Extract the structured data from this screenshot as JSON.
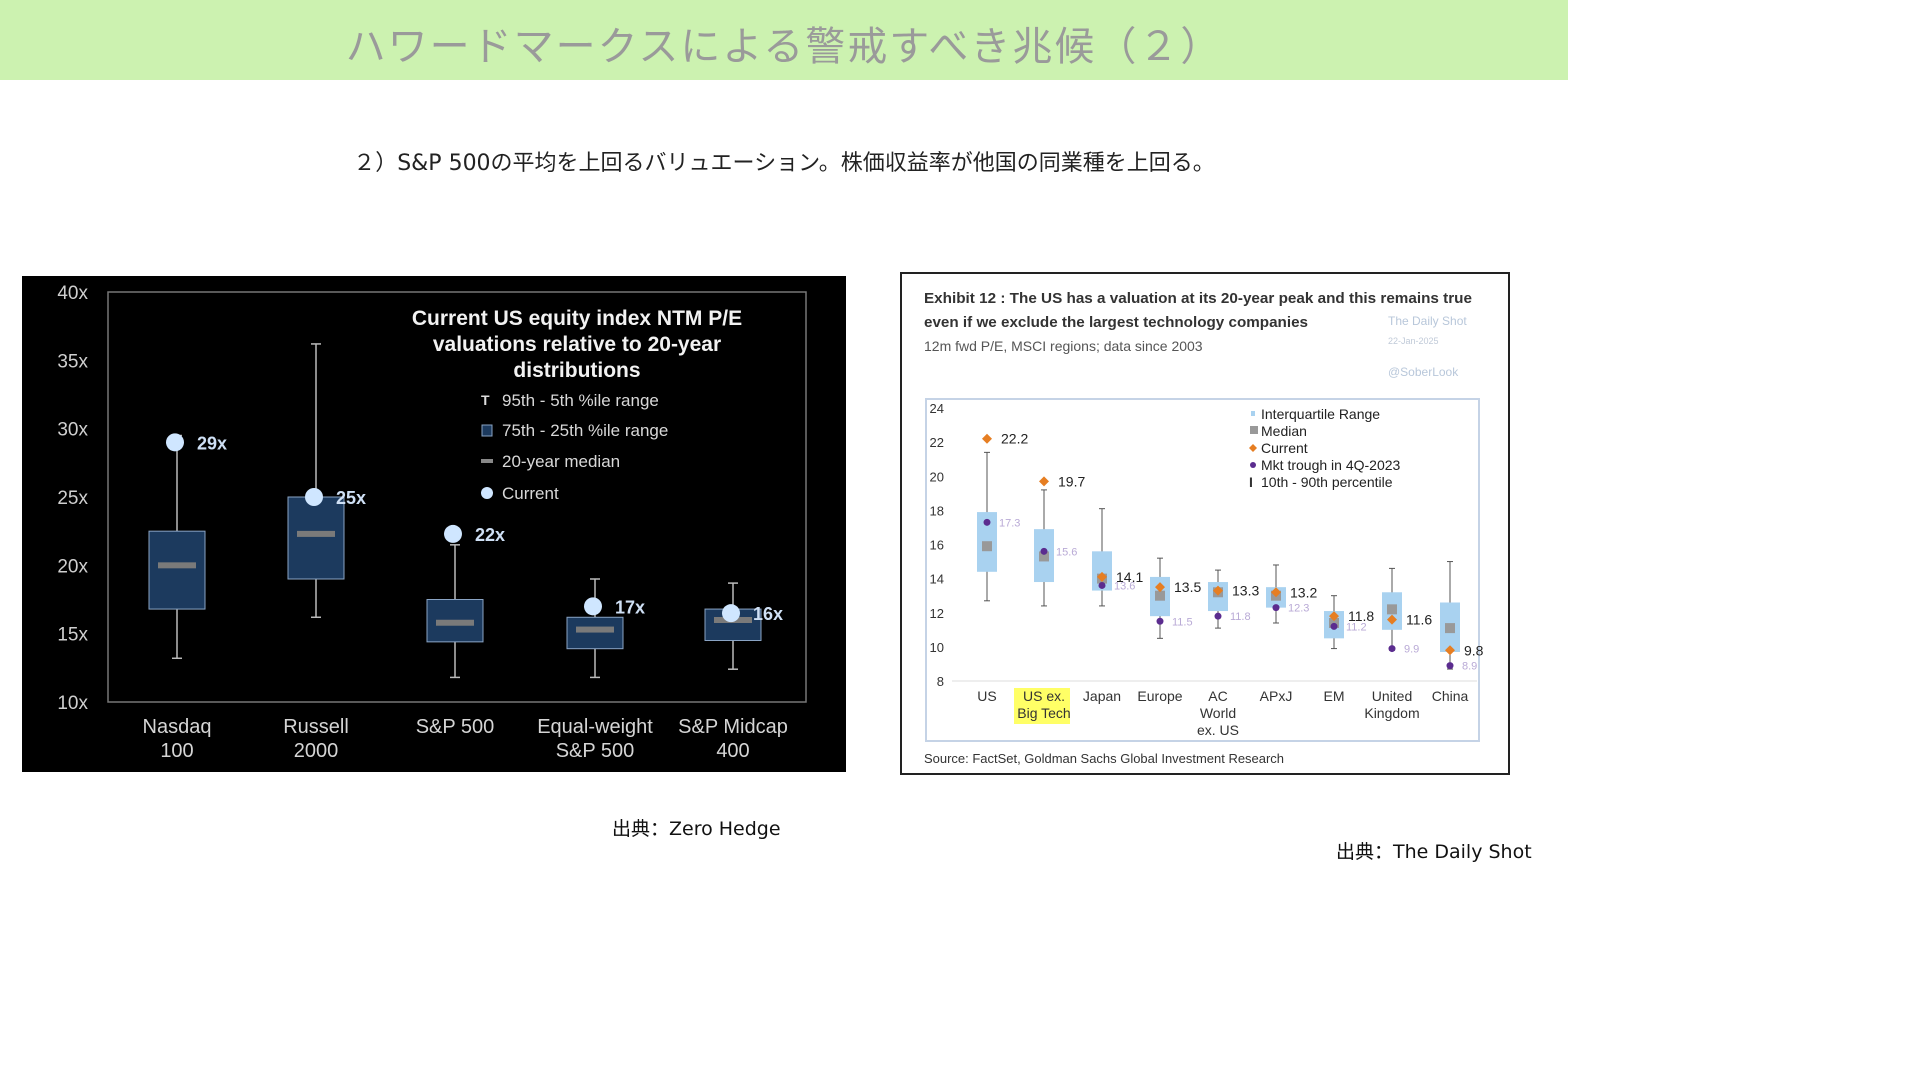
{
  "header": {
    "title": "ハワードマークスによる警戒すべき兆候（２）"
  },
  "subtitle": "２）S&P 500の平均を上回るバリュエーション。株価収益率が他国の同業種を上回る。",
  "sources": {
    "left": "出典：Zero Hedge",
    "right": "出典：The Daily Shot"
  },
  "colors": {
    "header_bg": "#ccf2b0",
    "left_bg": "#000000",
    "left_box": "#1c3a5e",
    "left_current": "#cfe6ff",
    "right_box": "#a9d2f0",
    "right_current": "#e67e22",
    "right_trough": "#5b2c8f",
    "right_median": "#999999",
    "highlight": "#ffff66"
  },
  "chart_data": [
    {
      "type": "boxplot",
      "title": "Current US equity index NTM P/E valuations relative to 20-year distributions",
      "title_lines": [
        "Current US equity index NTM P/E",
        "valuations relative to 20-year",
        "distributions"
      ],
      "legend": [
        {
          "symbol": "T",
          "label": "95th - 5th %ile range"
        },
        {
          "symbol": "box",
          "label": "75th - 25th %ile range"
        },
        {
          "symbol": "dash",
          "label": "20-year median"
        },
        {
          "symbol": "dot",
          "label": "Current"
        }
      ],
      "legend_position": "top-right",
      "y_ticks": [
        "10x",
        "15x",
        "20x",
        "25x",
        "30x",
        "35x",
        "40x"
      ],
      "ylim": [
        10,
        40
      ],
      "categories": [
        {
          "name": [
            "Nasdaq",
            "100"
          ],
          "p5": 13.2,
          "p25": 16.8,
          "median": 20.0,
          "p75": 22.5,
          "p95": 29.5,
          "current": 29,
          "current_label": "29x"
        },
        {
          "name": [
            "Russell",
            "2000"
          ],
          "p5": 16.2,
          "p25": 19.0,
          "median": 22.3,
          "p75": 25.0,
          "p95": 36.2,
          "current": 25,
          "current_label": "25x"
        },
        {
          "name": [
            "S&P 500"
          ],
          "p5": 11.8,
          "p25": 14.4,
          "median": 15.8,
          "p75": 17.5,
          "p95": 21.5,
          "current": 22.3,
          "current_label": "22x"
        },
        {
          "name": [
            "Equal-weight",
            "S&P 500"
          ],
          "p5": 11.8,
          "p25": 13.9,
          "median": 15.3,
          "p75": 16.2,
          "p95": 19.0,
          "current": 17.0,
          "current_label": "17x"
        },
        {
          "name": [
            "S&P Midcap",
            "400"
          ],
          "p5": 12.4,
          "p25": 14.5,
          "median": 16.0,
          "p75": 16.8,
          "p95": 18.7,
          "current": 16.5,
          "current_label": "16x"
        }
      ]
    },
    {
      "type": "boxplot",
      "title": "Exhibit 12 : The US has a valuation at its 20-year peak and this remains true even if we exclude the largest technology companies",
      "title_lines": [
        "Exhibit 12 : The US has a valuation at its 20-year peak and this remains true",
        "even if we exclude the largest technology companies"
      ],
      "subtitle": "12m fwd P/E, MSCI regions; data since 2003",
      "watermark": [
        "The Daily Shot",
        "22-Jan-2025",
        "@SoberLook"
      ],
      "source": "Source: FactSet, Goldman Sachs Global Investment Research",
      "legend": [
        "Interquartile Range",
        "Median",
        "Current",
        "Mkt trough in 4Q-2023",
        "10th - 90th percentile"
      ],
      "legend_position": "top-right",
      "y_ticks": [
        "8",
        "10",
        "12",
        "14",
        "16",
        "18",
        "20",
        "22",
        "24"
      ],
      "ylim": [
        8,
        24
      ],
      "categories": [
        {
          "name": [
            "US"
          ],
          "p10": 12.7,
          "p25": 14.4,
          "median": 15.9,
          "p75": 17.9,
          "p90": 21.4,
          "current": 22.2,
          "current_label": "22.2",
          "trough": 17.3,
          "trough_label": "17.3"
        },
        {
          "name": [
            "US ex.",
            "Big Tech"
          ],
          "highlight": true,
          "p10": 12.4,
          "p25": 13.8,
          "median": 15.3,
          "p75": 16.9,
          "p90": 19.2,
          "current": 19.7,
          "current_label": "19.7",
          "trough": 15.6,
          "trough_label": "15.6"
        },
        {
          "name": [
            "Japan"
          ],
          "p10": 12.4,
          "p25": 13.3,
          "median": 14.0,
          "p75": 15.6,
          "p90": 18.1,
          "current": 14.1,
          "current_label": "14.1",
          "trough": 13.6,
          "trough_label": "13.6"
        },
        {
          "name": [
            "Europe"
          ],
          "p10": 10.5,
          "p25": 11.8,
          "median": 13.0,
          "p75": 14.1,
          "p90": 15.2,
          "current": 13.5,
          "current_label": "13.5",
          "trough": 11.5,
          "trough_label": "11.5"
        },
        {
          "name": [
            "AC",
            "World",
            "ex. US"
          ],
          "p10": 11.1,
          "p25": 12.1,
          "median": 13.2,
          "p75": 13.8,
          "p90": 14.5,
          "current": 13.3,
          "current_label": "13.3",
          "trough": 11.8,
          "trough_label": "11.8"
        },
        {
          "name": [
            "APxJ"
          ],
          "p10": 11.4,
          "p25": 12.3,
          "median": 13.0,
          "p75": 13.5,
          "p90": 14.8,
          "current": 13.2,
          "current_label": "13.2",
          "trough": 12.3,
          "trough_label": "12.3"
        },
        {
          "name": [
            "EM"
          ],
          "p10": 9.9,
          "p25": 10.5,
          "median": 11.4,
          "p75": 12.1,
          "p90": 13.0,
          "current": 11.8,
          "current_label": "11.8",
          "trough": 11.2,
          "trough_label": "11.2"
        },
        {
          "name": [
            "United",
            "Kingdom"
          ],
          "p10": 9.8,
          "p25": 11.0,
          "median": 12.2,
          "p75": 13.2,
          "p90": 14.6,
          "current": 11.6,
          "current_label": "11.6",
          "trough": 9.9,
          "trough_label": "9.9"
        },
        {
          "name": [
            "China"
          ],
          "p10": 8.7,
          "p25": 9.7,
          "median": 11.1,
          "p75": 12.6,
          "p90": 15.0,
          "current": 9.8,
          "current_label": "9.8",
          "trough": 8.9,
          "trough_label": "8.9"
        }
      ]
    }
  ]
}
